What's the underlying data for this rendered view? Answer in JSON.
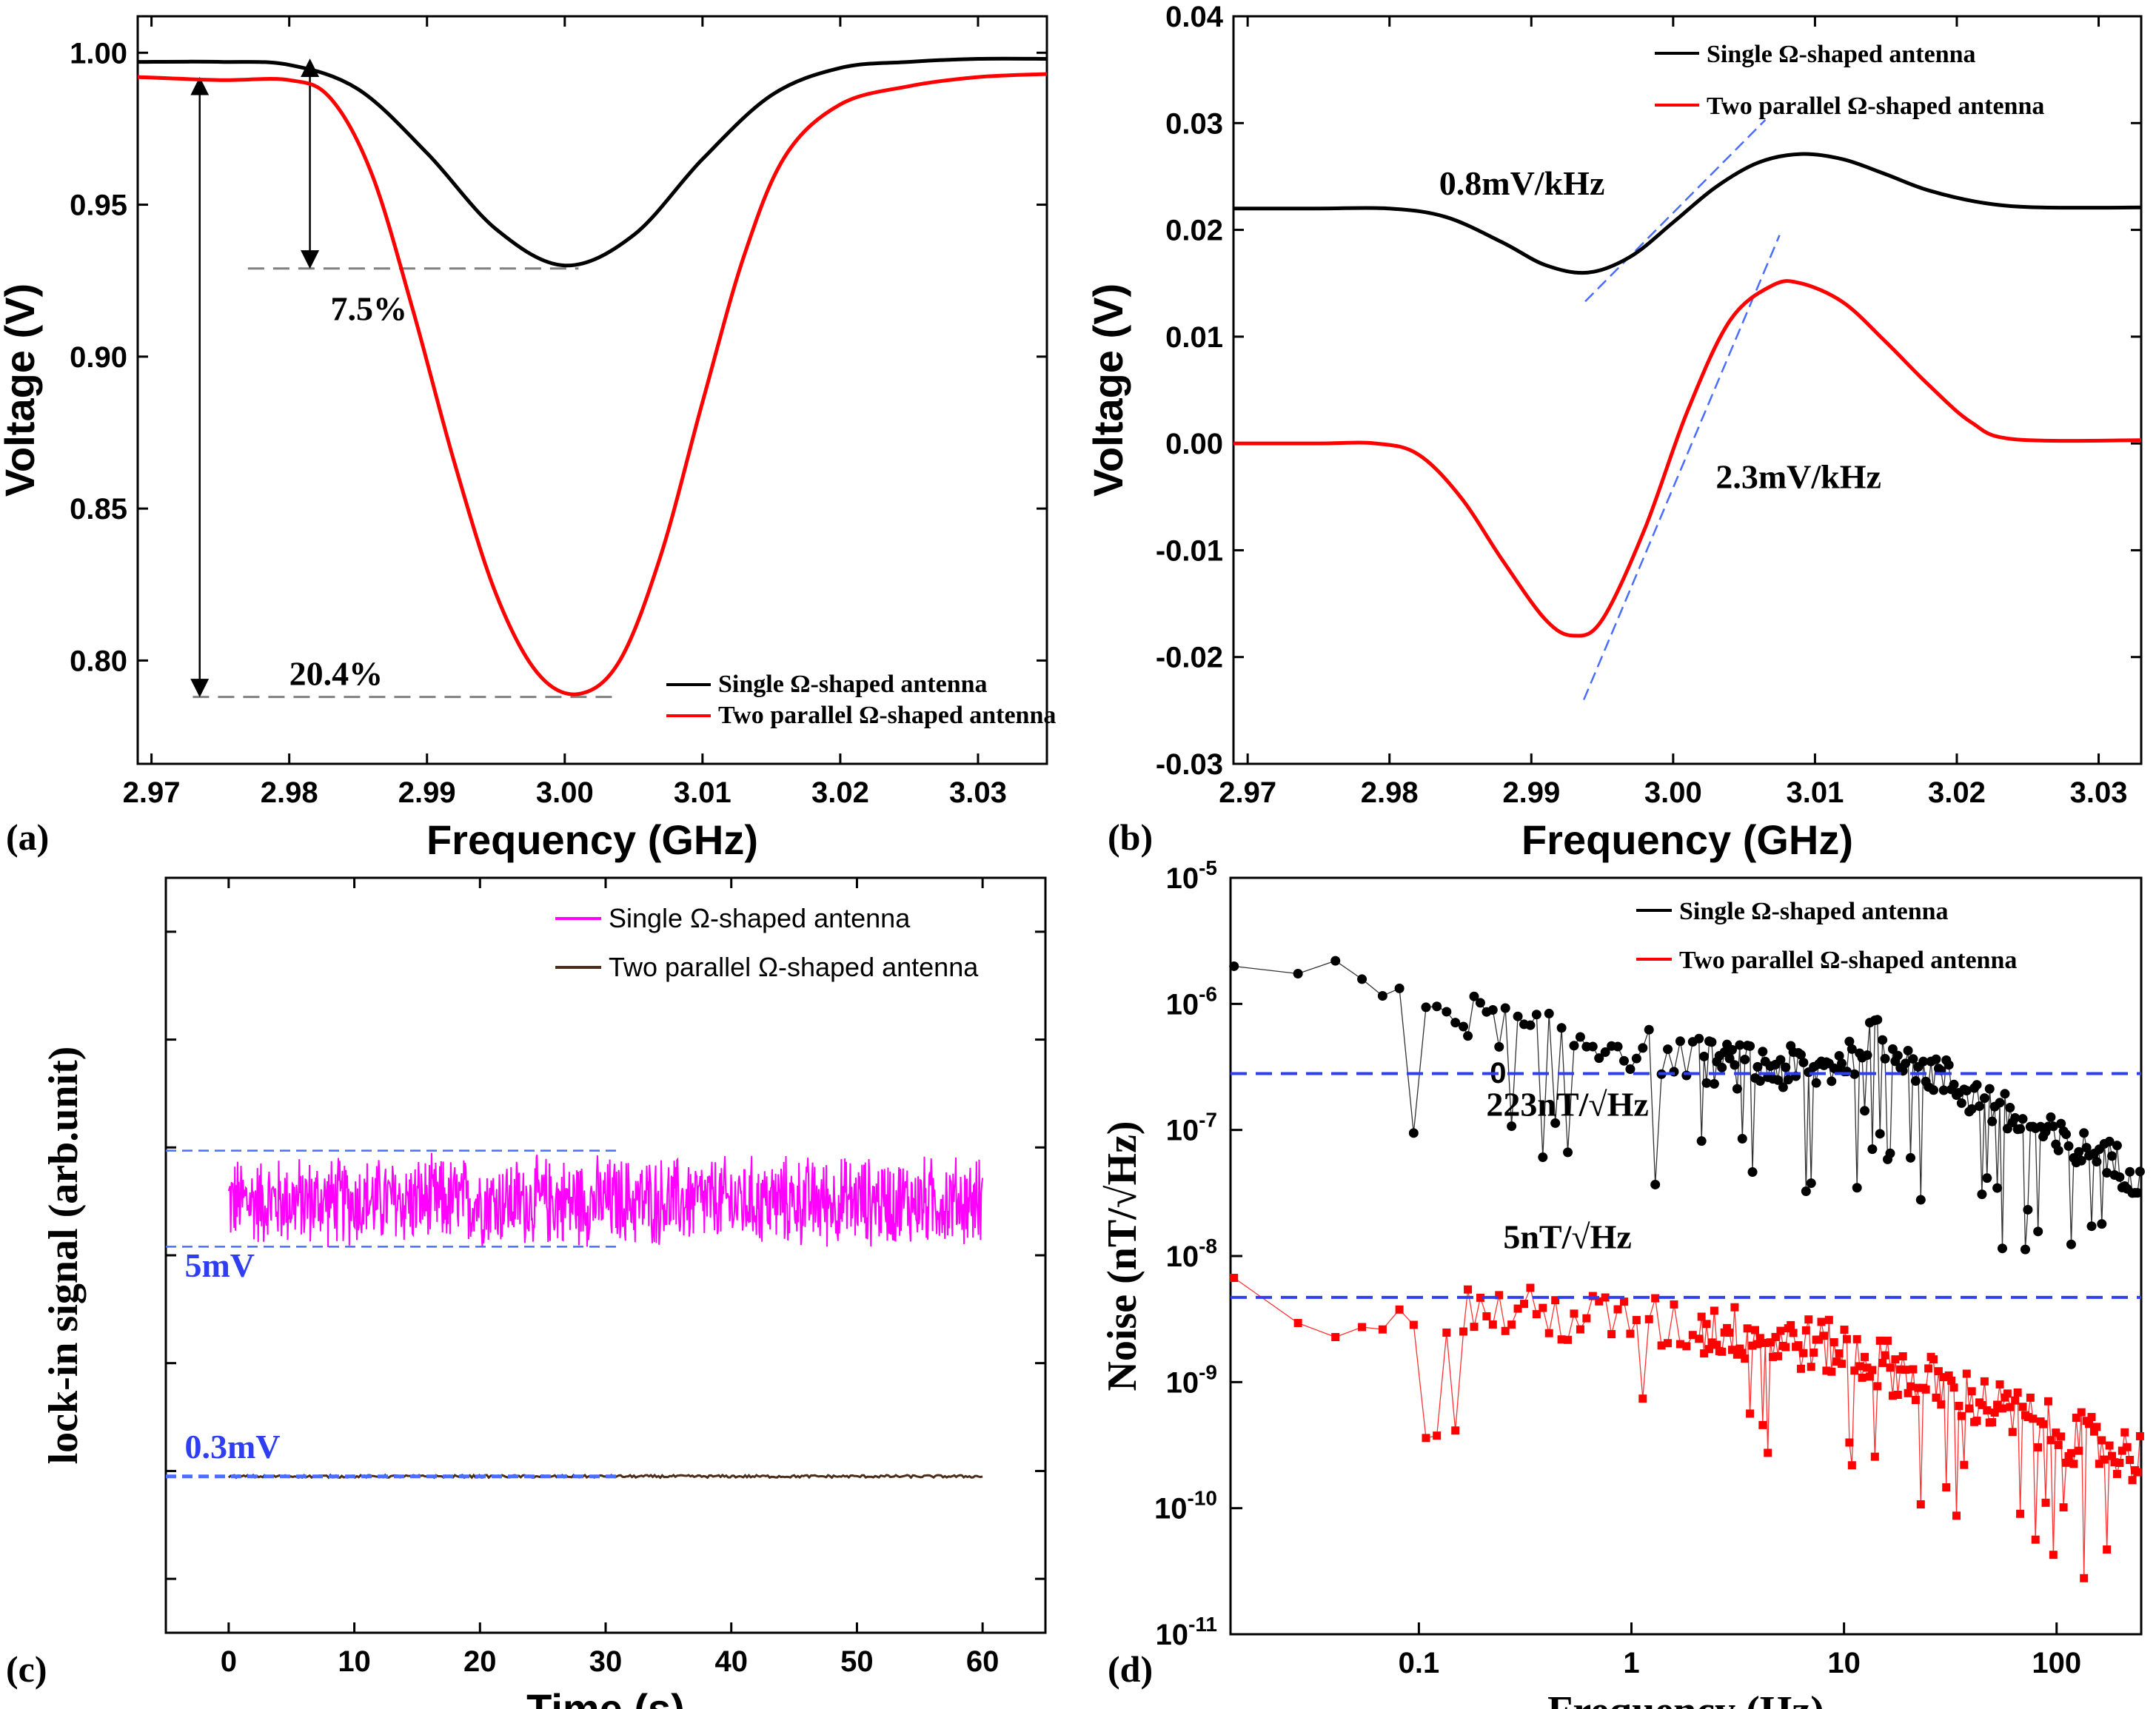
{
  "chart_data": [
    {
      "id": "a",
      "type": "line",
      "panel_label": "(a)",
      "xlabel": "Frequency (GHz)",
      "ylabel": "Voltage (V)",
      "xlim": [
        2.969,
        3.035
      ],
      "ylim": [
        0.766,
        1.012
      ],
      "xticks": [
        "2.97",
        "2.98",
        "2.99",
        "3.00",
        "3.01",
        "3.02",
        "3.03"
      ],
      "xtick_values": [
        2.97,
        2.98,
        2.99,
        3.0,
        3.01,
        3.02,
        3.03
      ],
      "yticks": [
        "0.80",
        "0.85",
        "0.90",
        "0.95",
        "1.00"
      ],
      "ytick_values": [
        0.8,
        0.85,
        0.9,
        0.95,
        1.0
      ],
      "legend_position": "bottom-right",
      "series": [
        {
          "name": "Single Ω-shaped antenna",
          "color": "#000000",
          "x": [
            2.969,
            2.975,
            2.98,
            2.985,
            2.99,
            2.995,
            3.0,
            3.005,
            3.01,
            3.015,
            3.02,
            3.025,
            3.03,
            3.035
          ],
          "y": [
            0.997,
            0.997,
            0.996,
            0.988,
            0.967,
            0.942,
            0.93,
            0.94,
            0.965,
            0.986,
            0.995,
            0.997,
            0.998,
            0.998
          ]
        },
        {
          "name": "Two parallel Ω-shaped antenna",
          "color": "#ff0000",
          "x": [
            2.969,
            2.975,
            2.98,
            2.983,
            2.986,
            2.989,
            2.992,
            2.995,
            2.998,
            3.001,
            3.004,
            3.007,
            3.01,
            3.013,
            3.016,
            3.02,
            3.025,
            3.03,
            3.035
          ],
          "y": [
            0.992,
            0.991,
            0.991,
            0.985,
            0.96,
            0.915,
            0.865,
            0.822,
            0.796,
            0.789,
            0.8,
            0.835,
            0.885,
            0.933,
            0.966,
            0.983,
            0.989,
            0.992,
            0.993
          ]
        }
      ],
      "annotations": [
        {
          "text": "7.5%",
          "x": 2.983,
          "y": 0.912
        },
        {
          "text": "20.4%",
          "x": 2.98,
          "y": 0.792
        }
      ],
      "reference_lines": [
        {
          "y": 0.929,
          "x_from": 2.977,
          "x_to": 3.001,
          "style": "dashed",
          "color": "#808080"
        },
        {
          "y": 0.788,
          "x_from": 2.973,
          "x_to": 3.004,
          "style": "dashed",
          "color": "#808080"
        }
      ],
      "arrows": [
        {
          "x": 2.9815,
          "y_from": 0.997,
          "y_to": 0.93
        },
        {
          "x": 2.9735,
          "y_from": 0.991,
          "y_to": 0.789
        }
      ]
    },
    {
      "id": "b",
      "type": "line",
      "panel_label": "(b)",
      "xlabel": "Frequency (GHz)",
      "ylabel": "Voltage (V)",
      "xlim": [
        2.969,
        3.033
      ],
      "ylim": [
        -0.03,
        0.04
      ],
      "xticks": [
        "2.97",
        "2.98",
        "2.99",
        "3.00",
        "3.01",
        "3.02",
        "3.03"
      ],
      "xtick_values": [
        2.97,
        2.98,
        2.99,
        3.0,
        3.01,
        3.02,
        3.03
      ],
      "yticks": [
        "-0.03",
        "-0.02",
        "-0.01",
        "0.00",
        "0.01",
        "0.02",
        "0.03",
        "0.04"
      ],
      "ytick_values": [
        -0.03,
        -0.02,
        -0.01,
        0.0,
        0.01,
        0.02,
        0.03,
        0.04
      ],
      "legend_position": "top-right",
      "series": [
        {
          "name": "Single Ω-shaped antenna",
          "color": "#000000",
          "x": [
            2.969,
            2.975,
            2.98,
            2.984,
            2.988,
            2.991,
            2.994,
            2.997,
            3.0,
            3.003,
            3.006,
            3.009,
            3.012,
            3.015,
            3.018,
            3.022,
            3.026,
            3.033
          ],
          "y": [
            0.022,
            0.022,
            0.022,
            0.0212,
            0.0188,
            0.0167,
            0.016,
            0.0175,
            0.0207,
            0.024,
            0.0263,
            0.0271,
            0.0266,
            0.0252,
            0.0237,
            0.0225,
            0.0221,
            0.0221
          ]
        },
        {
          "name": "Two parallel Ω-shaped antenna",
          "color": "#ff0000",
          "x": [
            2.969,
            2.975,
            2.979,
            2.982,
            2.985,
            2.988,
            2.991,
            2.993,
            2.995,
            2.998,
            3.001,
            3.004,
            3.007,
            3.009,
            3.012,
            3.015,
            3.018,
            3.021,
            3.024,
            3.033
          ],
          "y": [
            0.0,
            0.0,
            0.0,
            -0.001,
            -0.005,
            -0.011,
            -0.0165,
            -0.018,
            -0.0165,
            -0.008,
            0.003,
            0.0115,
            0.0148,
            0.015,
            0.0132,
            0.0095,
            0.0055,
            0.002,
            0.0004,
            0.0003
          ]
        }
      ],
      "tangent_lines": [
        {
          "x": [
            2.9938,
            3.0065
          ],
          "y": [
            0.0133,
            0.0303
          ],
          "color": "#4a6cff"
        },
        {
          "x": [
            2.9937,
            3.0075
          ],
          "y": [
            -0.024,
            0.0195
          ],
          "color": "#4a6cff"
        }
      ],
      "annotations": [
        {
          "text": "0.8mV/kHz",
          "x": 2.9835,
          "y": 0.0233
        },
        {
          "text": "2.3mV/kHz",
          "x": 3.003,
          "y": -0.0042
        }
      ]
    },
    {
      "id": "c",
      "type": "line",
      "panel_label": "(c)",
      "xlabel": "Time (s)",
      "ylabel": "lock-in signal (arb.unit)",
      "xlim": [
        -5,
        65
      ],
      "ylim": [
        0,
        7
      ],
      "xticks": [
        "0",
        "10",
        "20",
        "30",
        "40",
        "50",
        "60"
      ],
      "xtick_values": [
        0,
        10,
        20,
        30,
        40,
        50,
        60
      ],
      "yminor_ticks": [
        0.5,
        1.5,
        2.5,
        3.5,
        4.5,
        5.5,
        6.5
      ],
      "legend_position": "top-right",
      "series": [
        {
          "name": "Single Ω-shaped antenna",
          "color": "#ff00ff",
          "t_range": [
            0,
            60
          ],
          "center": 4.0,
          "band": [
            3.58,
            4.47
          ],
          "noise": "dense"
        },
        {
          "name": "Two parallel Ω-shaped antenna",
          "color": "#4b2e1a",
          "t_range": [
            0,
            60
          ],
          "center": 1.45,
          "band": [
            1.43,
            1.47
          ],
          "noise": "flat"
        }
      ],
      "reference_lines": [
        {
          "y": 4.47,
          "x_from": -5,
          "x_to": 31,
          "color": "#4a6cff"
        },
        {
          "y": 3.58,
          "x_from": -5,
          "x_to": 31,
          "color": "#4a6cff"
        },
        {
          "y": 1.45,
          "x_from": -5,
          "x_to": 31,
          "color": "#4a6cff"
        }
      ],
      "annotations": [
        {
          "text": "5mV",
          "x": -3.5,
          "y": 3.3,
          "color": "#2f3ef0"
        },
        {
          "text": "0.3mV",
          "x": -3.5,
          "y": 1.62,
          "color": "#2f3ef0"
        }
      ]
    },
    {
      "id": "d",
      "type": "scatter",
      "panel_label": "(d)",
      "xscale": "log",
      "yscale": "log",
      "xlabel": "Frequency (Hz)",
      "ylabel": "Noise (nT/√Hz)",
      "xlim": [
        0.013,
        250
      ],
      "ylim": [
        1e-11,
        1e-05
      ],
      "xticks": [
        "0.1",
        "1",
        "10",
        "100"
      ],
      "xtick_values": [
        0.1,
        1,
        10,
        100
      ],
      "extra_xtick_label": {
        "text": "0",
        "value": 0.3
      },
      "yticks": [
        {
          "base": "10",
          "exp": "-11",
          "value": 1e-11
        },
        {
          "base": "10",
          "exp": "-10",
          "value": 1e-10
        },
        {
          "base": "10",
          "exp": "-9",
          "value": 1e-09
        },
        {
          "base": "10",
          "exp": "-8",
          "value": 1e-08
        },
        {
          "base": "10",
          "exp": "-7",
          "value": 1e-07
        },
        {
          "base": "10",
          "exp": "-6",
          "value": 1e-06
        },
        {
          "base": "10",
          "exp": "-5",
          "value": 1e-05
        }
      ],
      "legend_position": "top-right",
      "series": [
        {
          "name": "Single Ω-shaped antenna",
          "color": "#000000",
          "marker": "circle",
          "trend": [
            [
              0.013,
              2e-06
            ],
            [
              0.02,
              2.5e-06
            ],
            [
              0.05,
              1.4e-06
            ],
            [
              0.1,
              1.1e-06
            ],
            [
              0.3,
              6e-07
            ],
            [
              1,
              4.5e-07
            ],
            [
              3,
              3.2e-07
            ],
            [
              8,
              3e-07
            ],
            [
              15,
              5.5e-07
            ],
            [
              30,
              2.5e-07
            ],
            [
              100,
              8e-08
            ],
            [
              250,
              4.5e-08
            ]
          ]
        },
        {
          "name": "Two parallel Ω-shaped antenna",
          "color": "#ff0000",
          "marker": "square",
          "trend": [
            [
              0.013,
              4.5e-09
            ],
            [
              0.03,
              3.5e-09
            ],
            [
              0.1,
              4e-09
            ],
            [
              0.3,
              3.5e-09
            ],
            [
              1,
              3e-09
            ],
            [
              3,
              2.5e-09
            ],
            [
              10,
              1.8e-09
            ],
            [
              30,
              9e-10
            ],
            [
              100,
              4e-10
            ],
            [
              250,
              2.5e-10
            ]
          ]
        }
      ],
      "reference_lines": [
        {
          "y": 2.8e-07,
          "color": "#2f3ef0",
          "style": "dashed"
        },
        {
          "y": 4.7e-09,
          "color": "#2f3ef0",
          "style": "dashed"
        }
      ],
      "annotations": [
        {
          "text": "223nT/√Hz",
          "x": 0.5,
          "y": 1.3e-07
        },
        {
          "text": "5nT/√Hz",
          "x": 0.5,
          "y": 1.15e-08
        }
      ]
    }
  ]
}
